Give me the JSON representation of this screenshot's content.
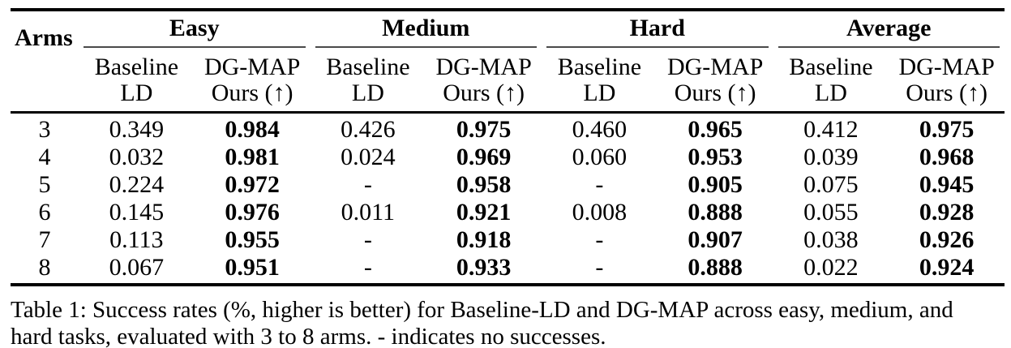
{
  "table": {
    "arms_header": "Arms",
    "groups": [
      {
        "label": "Easy"
      },
      {
        "label": "Medium"
      },
      {
        "label": "Hard"
      },
      {
        "label": "Average"
      }
    ],
    "sub": {
      "baseline": {
        "line1": "Baseline",
        "line2": "LD"
      },
      "ours": {
        "line1": "DG-MAP",
        "line2": "Ours (↑)"
      }
    },
    "rows": [
      {
        "arms": "3",
        "values": [
          "0.349",
          "0.984",
          "0.426",
          "0.975",
          "0.460",
          "0.965",
          "0.412",
          "0.975"
        ]
      },
      {
        "arms": "4",
        "values": [
          "0.032",
          "0.981",
          "0.024",
          "0.969",
          "0.060",
          "0.953",
          "0.039",
          "0.968"
        ]
      },
      {
        "arms": "5",
        "values": [
          "0.224",
          "0.972",
          "-",
          "0.958",
          "-",
          "0.905",
          "0.075",
          "0.945"
        ]
      },
      {
        "arms": "6",
        "values": [
          "0.145",
          "0.976",
          "0.011",
          "0.921",
          "0.008",
          "0.888",
          "0.055",
          "0.928"
        ]
      },
      {
        "arms": "7",
        "values": [
          "0.113",
          "0.955",
          "-",
          "0.918",
          "-",
          "0.907",
          "0.038",
          "0.926"
        ]
      },
      {
        "arms": "8",
        "values": [
          "0.067",
          "0.951",
          "-",
          "0.933",
          "-",
          "0.888",
          "0.022",
          "0.924"
        ]
      }
    ]
  },
  "caption": {
    "line1": "Table 1: Success rates (%, higher is better) for Baseline-LD and DG-MAP across easy, medium, and",
    "line2": "hard tasks, evaluated with 3 to 8 arms. - indicates no successes."
  },
  "colors": {
    "text": "#000000",
    "rule_heavy": "#000000",
    "rule_light": "#4a4a4a",
    "background": "#ffffff"
  }
}
